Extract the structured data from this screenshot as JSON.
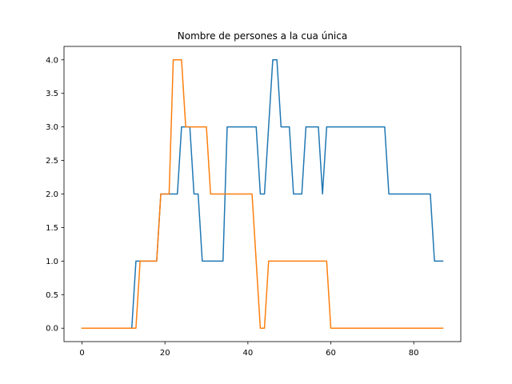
{
  "chart_data": {
    "type": "line",
    "title": "Nombre de persones a la cua única",
    "xlabel": "",
    "ylabel": "",
    "xlim": [
      -4.35,
      91.35
    ],
    "ylim": [
      -0.2,
      4.2
    ],
    "grid": false,
    "x_ticks": [
      0,
      20,
      40,
      60,
      80
    ],
    "y_ticks": [
      0.0,
      0.5,
      1.0,
      1.5,
      2.0,
      2.5,
      3.0,
      3.5,
      4.0
    ],
    "x_tick_labels": [
      "0",
      "20",
      "40",
      "60",
      "80"
    ],
    "y_tick_labels": [
      "0.0",
      "0.5",
      "1.0",
      "1.5",
      "2.0",
      "2.5",
      "3.0",
      "3.5",
      "4.0"
    ],
    "series": [
      {
        "color": "#1f77b4",
        "x": [
          0,
          1,
          2,
          3,
          4,
          5,
          6,
          7,
          8,
          9,
          10,
          11,
          12,
          13,
          14,
          15,
          16,
          17,
          18,
          19,
          20,
          21,
          22,
          23,
          24,
          25,
          26,
          27,
          28,
          29,
          30,
          31,
          32,
          33,
          34,
          35,
          36,
          37,
          38,
          39,
          40,
          41,
          42,
          43,
          44,
          45,
          46,
          47,
          48,
          49,
          50,
          51,
          52,
          53,
          54,
          55,
          56,
          57,
          58,
          59,
          60,
          61,
          62,
          63,
          64,
          65,
          66,
          67,
          68,
          69,
          70,
          71,
          72,
          73,
          74,
          75,
          76,
          77,
          78,
          79,
          80,
          81,
          82,
          83,
          84,
          85,
          86,
          87
        ],
        "values": [
          0,
          0,
          0,
          0,
          0,
          0,
          0,
          0,
          0,
          0,
          0,
          0,
          0,
          1,
          1,
          1,
          1,
          1,
          1,
          2,
          2,
          2,
          2,
          2,
          3,
          3,
          3,
          2,
          2,
          1,
          1,
          1,
          1,
          1,
          1,
          3,
          3,
          3,
          3,
          3,
          3,
          3,
          3,
          2,
          2,
          3,
          4,
          4,
          3,
          3,
          3,
          2,
          2,
          2,
          3,
          3,
          3,
          3,
          2,
          3,
          3,
          3,
          3,
          3,
          3,
          3,
          3,
          3,
          3,
          3,
          3,
          3,
          3,
          3,
          2,
          2,
          2,
          2,
          2,
          2,
          2,
          2,
          2,
          2,
          2,
          1,
          1,
          1
        ]
      },
      {
        "color": "#ff7f0e",
        "x": [
          0,
          1,
          2,
          3,
          4,
          5,
          6,
          7,
          8,
          9,
          10,
          11,
          12,
          13,
          14,
          15,
          16,
          17,
          18,
          19,
          20,
          21,
          22,
          23,
          24,
          25,
          26,
          27,
          28,
          29,
          30,
          31,
          32,
          33,
          34,
          35,
          36,
          37,
          38,
          39,
          40,
          41,
          42,
          43,
          44,
          45,
          46,
          47,
          48,
          49,
          50,
          51,
          52,
          53,
          54,
          55,
          56,
          57,
          58,
          59,
          60,
          61,
          62,
          63,
          64,
          65,
          66,
          67,
          68,
          69,
          70,
          71,
          72,
          73,
          74,
          75,
          76,
          77,
          78,
          79,
          80,
          81,
          82,
          83,
          84,
          85,
          86,
          87
        ],
        "values": [
          0,
          0,
          0,
          0,
          0,
          0,
          0,
          0,
          0,
          0,
          0,
          0,
          0,
          0,
          1,
          1,
          1,
          1,
          1,
          2,
          2,
          2,
          4,
          4,
          4,
          3,
          3,
          3,
          3,
          3,
          3,
          2,
          2,
          2,
          2,
          2,
          2,
          2,
          2,
          2,
          2,
          2,
          1,
          0,
          0,
          1,
          1,
          1,
          1,
          1,
          1,
          1,
          1,
          1,
          1,
          1,
          1,
          1,
          1,
          1,
          0,
          0,
          0,
          0,
          0,
          0,
          0,
          0,
          0,
          0,
          0,
          0,
          0,
          0,
          0,
          0,
          0,
          0,
          0,
          0,
          0,
          0,
          0,
          0,
          0,
          0,
          0,
          0
        ]
      }
    ]
  }
}
